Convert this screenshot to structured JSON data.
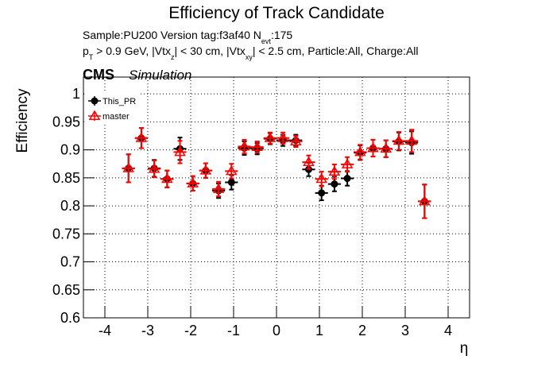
{
  "chart_data": {
    "type": "errorbar",
    "title": "Efficiency of Track Candidate",
    "info_lines": [
      [
        "Sample:PU200   Version tag:f3af40  N",
        "evt",
        ":175"
      ],
      [
        "p",
        "T",
        " > 0.9 GeV, |Vtx",
        "z",
        "| < 30 cm, |Vtx",
        "xy",
        "| < 2.5 cm, Particle:All, Charge:All"
      ]
    ],
    "experiment": "CMS",
    "experiment_note": "Simulation",
    "y_label": "Efficiency",
    "x_label": "η",
    "x": [
      -3.45,
      -3.15,
      -2.85,
      -2.55,
      -2.25,
      -1.95,
      -1.65,
      -1.35,
      -1.05,
      -0.75,
      -0.45,
      -0.15,
      0.15,
      0.45,
      0.75,
      1.05,
      1.35,
      1.65,
      1.95,
      2.25,
      2.55,
      2.85,
      3.15,
      3.45
    ],
    "xerr": 0.15,
    "series": [
      {
        "name": "This_PR",
        "color": "#000000",
        "marker": "circle",
        "values": [
          0.867,
          0.921,
          0.867,
          0.848,
          0.902,
          0.84,
          0.863,
          0.827,
          0.842,
          0.903,
          0.902,
          0.92,
          0.917,
          0.917,
          0.865,
          0.823,
          0.839,
          0.849,
          0.895,
          0.903,
          0.902,
          0.915,
          0.913,
          0.808
        ],
        "errors": [
          0.025,
          0.018,
          0.015,
          0.015,
          0.02,
          0.013,
          0.013,
          0.013,
          0.013,
          0.012,
          0.01,
          0.01,
          0.01,
          0.01,
          0.012,
          0.013,
          0.013,
          0.013,
          0.013,
          0.015,
          0.015,
          0.016,
          0.02,
          0.03
        ]
      },
      {
        "name": "master",
        "color": "#ff0000",
        "marker": "triangle",
        "values": [
          0.867,
          0.921,
          0.866,
          0.848,
          0.896,
          0.84,
          0.863,
          0.83,
          0.862,
          0.906,
          0.905,
          0.921,
          0.921,
          0.915,
          0.878,
          0.848,
          0.861,
          0.874,
          0.896,
          0.903,
          0.902,
          0.916,
          0.916,
          0.808
        ],
        "errors": [
          0.025,
          0.018,
          0.015,
          0.015,
          0.02,
          0.013,
          0.013,
          0.013,
          0.013,
          0.012,
          0.01,
          0.01,
          0.01,
          0.01,
          0.012,
          0.013,
          0.013,
          0.013,
          0.013,
          0.015,
          0.015,
          0.016,
          0.02,
          0.03
        ]
      }
    ],
    "xlim": [
      -4.5,
      4.5
    ],
    "ylim": [
      0.6,
      1.03
    ],
    "xticks": [
      -4,
      -3,
      -2,
      -1,
      0,
      1,
      2,
      3,
      4
    ],
    "yticks": [
      0.6,
      0.65,
      0.7,
      0.75,
      0.8,
      0.85,
      0.9,
      0.95,
      1
    ],
    "grid": true,
    "legend": "upper left"
  }
}
